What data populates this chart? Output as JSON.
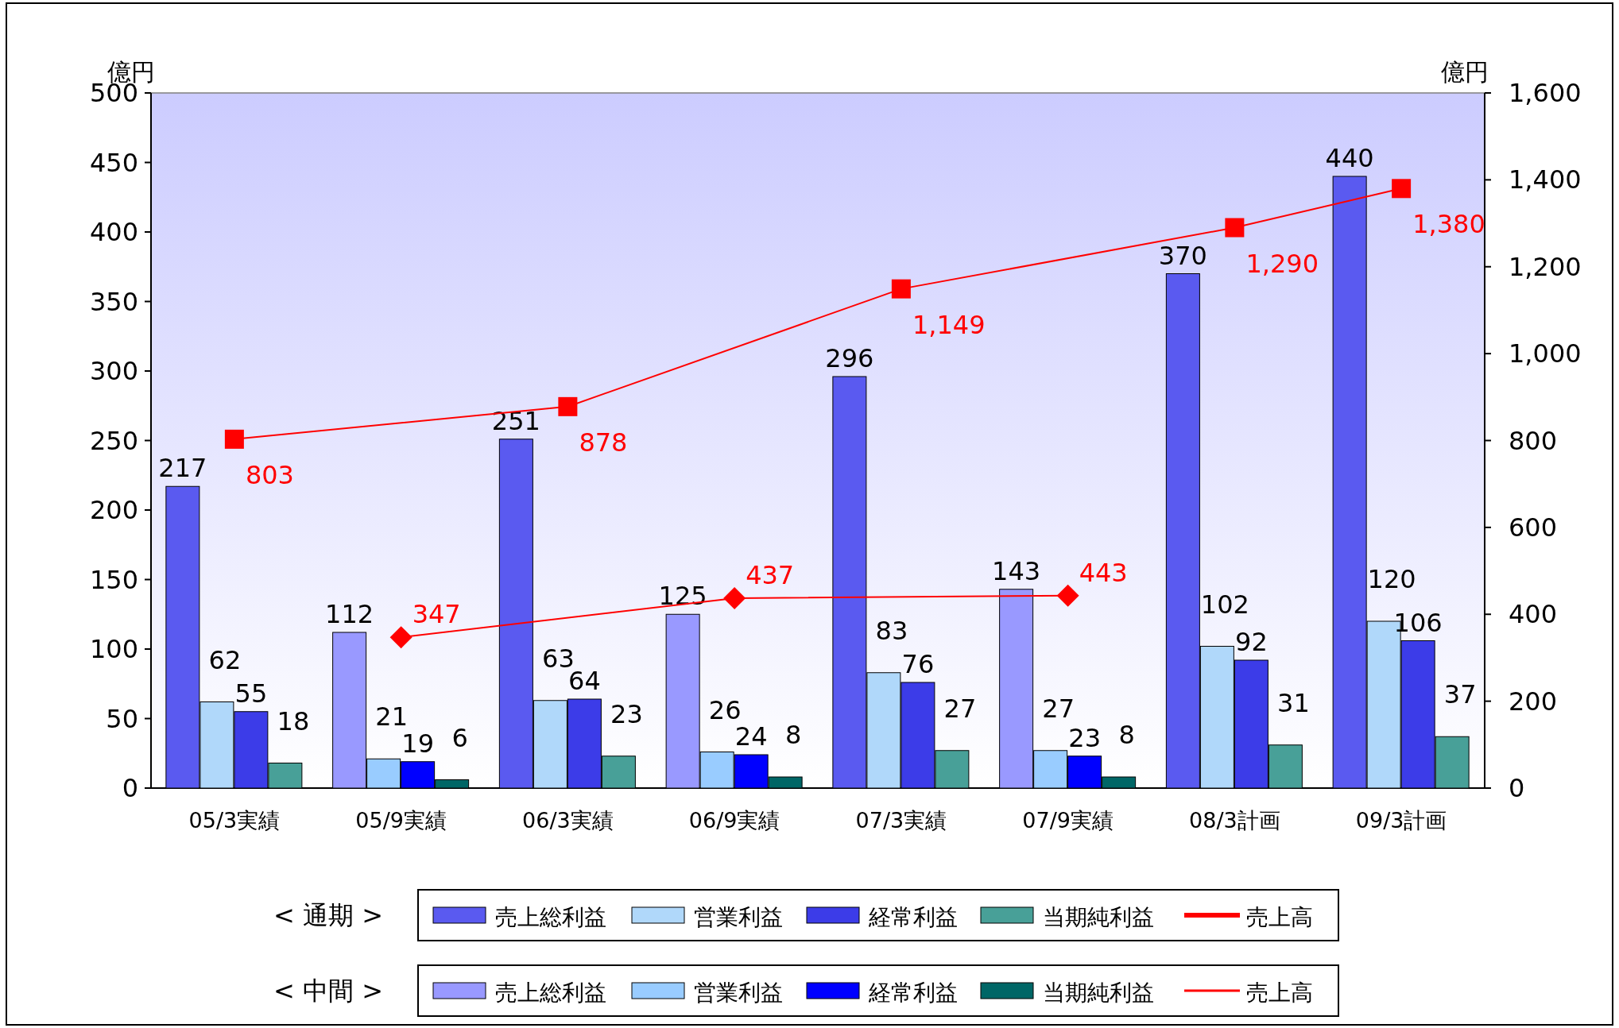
{
  "chart_data": {
    "type": "bar",
    "categories": [
      "05/3実績",
      "05/9実績",
      "06/3実績",
      "06/9実績",
      "07/3実績",
      "07/9実績",
      "08/3計画",
      "09/3計画"
    ],
    "ylabel": "億円",
    "y2label": "億円",
    "ylim": [
      0,
      500
    ],
    "yticks": [
      0,
      50,
      100,
      150,
      200,
      250,
      300,
      350,
      400,
      450,
      500
    ],
    "y2lim": [
      0,
      1600
    ],
    "y2ticks": [
      0,
      200,
      400,
      600,
      800,
      {
        "value": 1000,
        "label": "1,000"
      },
      {
        "value": 1200,
        "label": "1,200"
      },
      {
        "value": 1400,
        "label": "1,400"
      },
      {
        "value": 1600,
        "label": "1,600"
      }
    ],
    "data_labels": true,
    "legend": "bottom",
    "annotations": [
      "< 通期 >",
      "< 中間 >"
    ],
    "series": [
      {
        "name": "売上総利益",
        "color": "#5a5af0",
        "values": [
          217,
          null,
          251,
          null,
          296,
          null,
          370,
          440
        ]
      },
      {
        "name": "営業利益",
        "color": "#b0d8fa",
        "values": [
          62,
          null,
          63,
          null,
          83,
          null,
          102,
          120
        ]
      },
      {
        "name": "経常利益",
        "color": "#3c3ce8",
        "values": [
          55,
          null,
          64,
          null,
          76,
          null,
          92,
          106
        ]
      },
      {
        "name": "当期純利益",
        "color": "#48a098",
        "values": [
          18,
          null,
          23,
          null,
          27,
          null,
          31,
          37
        ]
      },
      {
        "name": "売上高",
        "type": "line",
        "axis": "y2",
        "marker": "square",
        "color": "#ff0000",
        "values": [
          803,
          null,
          878,
          null,
          1149,
          null,
          1290,
          1380
        ],
        "value_labels": [
          "803",
          null,
          "878",
          null,
          "1,149",
          null,
          "1,290",
          "1,380"
        ]
      },
      {
        "name": "売上総利益",
        "color": "#9999ff",
        "values": [
          null,
          112,
          null,
          125,
          null,
          143,
          null,
          null
        ]
      },
      {
        "name": "営業利益",
        "color": "#99ccff",
        "values": [
          null,
          21,
          null,
          26,
          null,
          27,
          null,
          null
        ]
      },
      {
        "name": "経常利益",
        "color": "#0000ff",
        "values": [
          null,
          19,
          null,
          24,
          null,
          23,
          null,
          null
        ]
      },
      {
        "name": "当期純利益",
        "color": "#006666",
        "values": [
          null,
          6,
          null,
          8,
          null,
          8,
          null,
          null
        ]
      },
      {
        "name": "売上高",
        "type": "line",
        "axis": "y2",
        "marker": "diamond",
        "color": "#ff0000",
        "values": [
          null,
          347,
          null,
          437,
          null,
          443,
          null,
          null
        ]
      }
    ]
  }
}
